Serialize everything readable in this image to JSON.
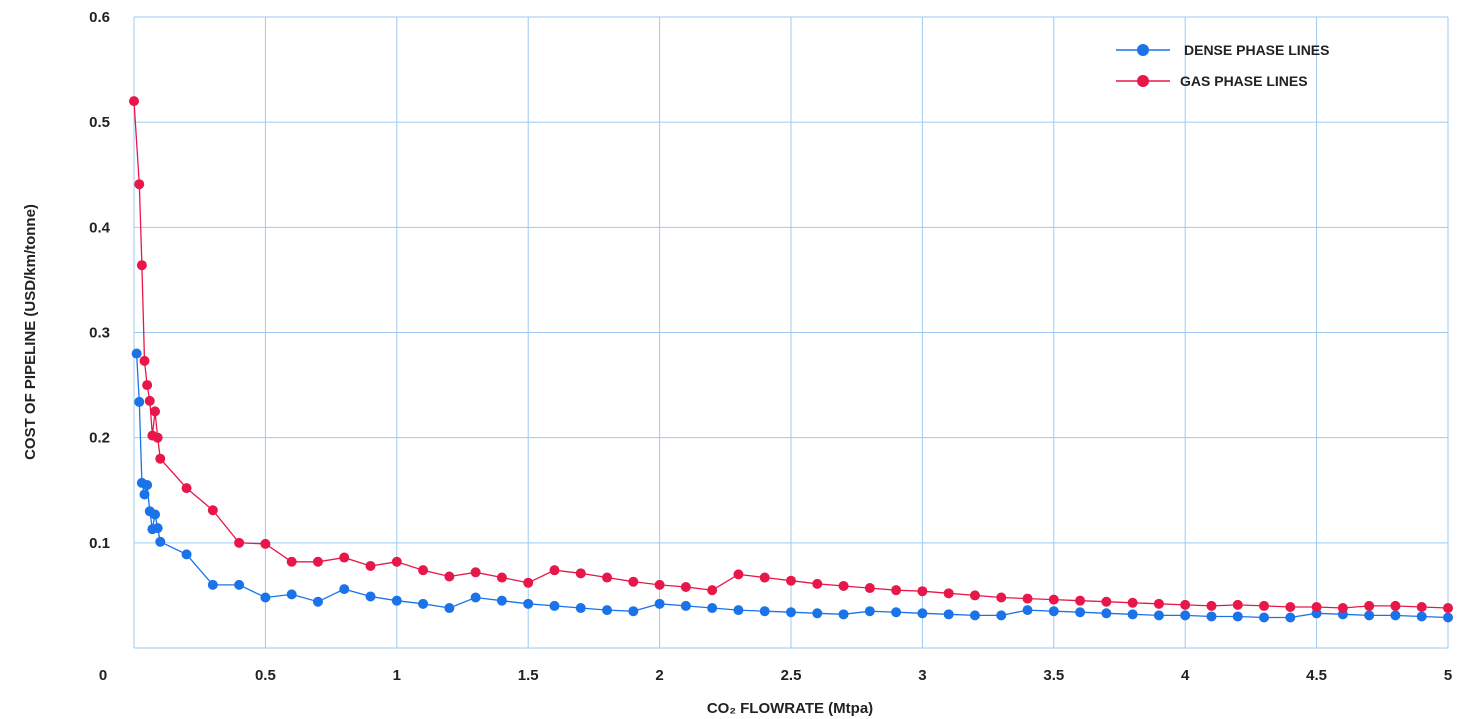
{
  "chart_data": {
    "type": "line",
    "xlabel": "CO₂ FLOWRATE (Mtpa)",
    "ylabel": "COST OF PIPELINE (USD/km/tonne)",
    "xlim": [
      0,
      5
    ],
    "ylim": [
      0,
      0.6
    ],
    "x_ticks": [
      "0",
      "0.5",
      "1",
      "1.5",
      "2",
      "2.5",
      "3",
      "3.5",
      "4",
      "4.5",
      "5"
    ],
    "y_ticks": [
      "0",
      "0.1",
      "0.2",
      "0.3",
      "0.4",
      "0.5",
      "0.6"
    ],
    "grid": true,
    "legend_position": "top-right",
    "series": [
      {
        "name": "DENSE PHASE LINES",
        "color": "#1a73e8",
        "x": [
          0.01,
          0.02,
          0.03,
          0.04,
          0.05,
          0.06,
          0.07,
          0.08,
          0.09,
          0.1,
          0.2,
          0.3,
          0.4,
          0.5,
          0.6,
          0.7,
          0.8,
          0.9,
          1.0,
          1.1,
          1.2,
          1.3,
          1.4,
          1.5,
          1.6,
          1.7,
          1.8,
          1.9,
          2.0,
          2.1,
          2.2,
          2.3,
          2.4,
          2.5,
          2.6,
          2.7,
          2.8,
          2.9,
          3.0,
          3.1,
          3.2,
          3.3,
          3.4,
          3.5,
          3.6,
          3.7,
          3.8,
          3.9,
          4.0,
          4.1,
          4.2,
          4.3,
          4.4,
          4.5,
          4.6,
          4.7,
          4.8,
          4.9,
          5.0
        ],
        "y": [
          0.28,
          0.234,
          0.157,
          0.146,
          0.155,
          0.13,
          0.113,
          0.127,
          0.114,
          0.101,
          0.089,
          0.06,
          0.06,
          0.048,
          0.051,
          0.044,
          0.056,
          0.049,
          0.045,
          0.042,
          0.038,
          0.048,
          0.045,
          0.042,
          0.04,
          0.038,
          0.036,
          0.035,
          0.042,
          0.04,
          0.038,
          0.036,
          0.035,
          0.034,
          0.033,
          0.032,
          0.035,
          0.034,
          0.033,
          0.032,
          0.031,
          0.031,
          0.036,
          0.035,
          0.034,
          0.033,
          0.032,
          0.031,
          0.031,
          0.03,
          0.03,
          0.029,
          0.029,
          0.033,
          0.032,
          0.031,
          0.031,
          0.03,
          0.029
        ]
      },
      {
        "name": "GAS PHASE LINES",
        "color": "#e8174a",
        "x": [
          0.0,
          0.02,
          0.03,
          0.04,
          0.05,
          0.06,
          0.07,
          0.08,
          0.09,
          0.1,
          0.2,
          0.3,
          0.4,
          0.5,
          0.6,
          0.7,
          0.8,
          0.9,
          1.0,
          1.1,
          1.2,
          1.3,
          1.4,
          1.5,
          1.6,
          1.7,
          1.8,
          1.9,
          2.0,
          2.1,
          2.2,
          2.3,
          2.4,
          2.5,
          2.6,
          2.7,
          2.8,
          2.9,
          3.0,
          3.1,
          3.2,
          3.3,
          3.4,
          3.5,
          3.6,
          3.7,
          3.8,
          3.9,
          4.0,
          4.1,
          4.2,
          4.3,
          4.4,
          4.5,
          4.6,
          4.7,
          4.8,
          4.9,
          5.0
        ],
        "y": [
          0.52,
          0.441,
          0.364,
          0.273,
          0.25,
          0.235,
          0.202,
          0.225,
          0.2,
          0.18,
          0.152,
          0.131,
          0.1,
          0.099,
          0.082,
          0.082,
          0.086,
          0.078,
          0.082,
          0.074,
          0.068,
          0.072,
          0.067,
          0.062,
          0.074,
          0.071,
          0.067,
          0.063,
          0.06,
          0.058,
          0.055,
          0.07,
          0.067,
          0.064,
          0.061,
          0.059,
          0.057,
          0.055,
          0.054,
          0.052,
          0.05,
          0.048,
          0.047,
          0.046,
          0.045,
          0.044,
          0.043,
          0.042,
          0.041,
          0.04,
          0.041,
          0.04,
          0.039,
          0.039,
          0.038,
          0.04,
          0.04,
          0.039,
          0.038
        ]
      }
    ]
  }
}
